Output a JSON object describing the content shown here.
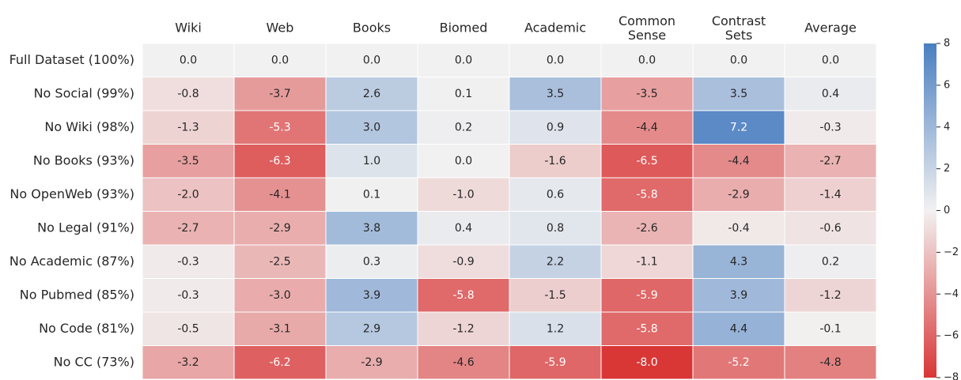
{
  "chart_data": {
    "type": "heatmap",
    "x": [
      "Wiki",
      "Web",
      "Books",
      "Biomed",
      "Academic",
      "Common\nSense",
      "Contrast\nSets",
      "Average"
    ],
    "y": [
      "Full Dataset (100%)",
      "No Social (99%)",
      "No Wiki (98%)",
      "No Books (93%)",
      "No OpenWeb (93%)",
      "No Legal (91%)",
      "No Academic (87%)",
      "No Pubmed (85%)",
      "No Code (81%)",
      "No CC (73%)"
    ],
    "values": [
      [
        0.0,
        0.0,
        0.0,
        0.0,
        0.0,
        0.0,
        0.0,
        0.0
      ],
      [
        -0.8,
        -3.7,
        2.6,
        0.1,
        3.5,
        -3.5,
        3.5,
        0.4
      ],
      [
        -1.3,
        -5.3,
        3.0,
        0.2,
        0.9,
        -4.4,
        7.2,
        -0.3
      ],
      [
        -3.5,
        -6.3,
        1.0,
        0.0,
        -1.6,
        -6.5,
        -4.4,
        -2.7
      ],
      [
        -2.0,
        -4.1,
        0.1,
        -1.0,
        0.6,
        -5.8,
        -2.9,
        -1.4
      ],
      [
        -2.7,
        -2.9,
        3.8,
        0.4,
        0.8,
        -2.6,
        -0.4,
        -0.6
      ],
      [
        -0.3,
        -2.5,
        0.3,
        -0.9,
        2.2,
        -1.1,
        4.3,
        0.2
      ],
      [
        -0.3,
        -3.0,
        3.9,
        -5.8,
        -1.5,
        -5.9,
        3.9,
        -1.2
      ],
      [
        -0.5,
        -3.1,
        2.9,
        -1.2,
        1.2,
        -5.8,
        4.4,
        -0.1
      ],
      [
        -3.2,
        -6.2,
        -2.9,
        -4.6,
        -5.9,
        -8.0,
        -5.2,
        -4.8
      ]
    ],
    "value_labels": [
      [
        "0.0",
        "0.0",
        "0.0",
        "0.0",
        "0.0",
        "0.0",
        "0.0",
        "0.0"
      ],
      [
        "-0.8",
        "-3.7",
        "2.6",
        "0.1",
        "3.5",
        "-3.5",
        "3.5",
        "0.4"
      ],
      [
        "-1.3",
        "-5.3",
        "3.0",
        "0.2",
        "0.9",
        "-4.4",
        "7.2",
        "-0.3"
      ],
      [
        "-3.5",
        "-6.3",
        "1.0",
        "0.0",
        "-1.6",
        "-6.5",
        "-4.4",
        "-2.7"
      ],
      [
        "-2.0",
        "-4.1",
        "0.1",
        "-1.0",
        "0.6",
        "-5.8",
        "-2.9",
        "-1.4"
      ],
      [
        "-2.7",
        "-2.9",
        "3.8",
        "0.4",
        "0.8",
        "-2.6",
        "-0.4",
        "-0.6"
      ],
      [
        "-0.3",
        "-2.5",
        "0.3",
        "-0.9",
        "2.2",
        "-1.1",
        "4.3",
        "0.2"
      ],
      [
        "-0.3",
        "-3.0",
        "3.9",
        "-5.8",
        "-1.5",
        "-5.9",
        "3.9",
        "-1.2"
      ],
      [
        "-0.5",
        "-3.1",
        "2.9",
        "-1.2",
        "1.2",
        "-5.8",
        "4.4",
        "-0.1"
      ],
      [
        "-3.2",
        "-6.2",
        "-2.9",
        "-4.6",
        "-5.9",
        "-8.0",
        "-5.2",
        "-4.8"
      ]
    ],
    "colormap": [
      "#d93636",
      "#f2f1f1",
      "#4a7fc1"
    ],
    "clim": [
      -8,
      8
    ],
    "cticks": [
      {
        "value": -8,
        "label": "−8"
      },
      {
        "value": -6,
        "label": "−6"
      },
      {
        "value": -4,
        "label": "−4"
      },
      {
        "value": -2,
        "label": "−2"
      },
      0,
      2,
      4,
      6,
      8
    ]
  }
}
